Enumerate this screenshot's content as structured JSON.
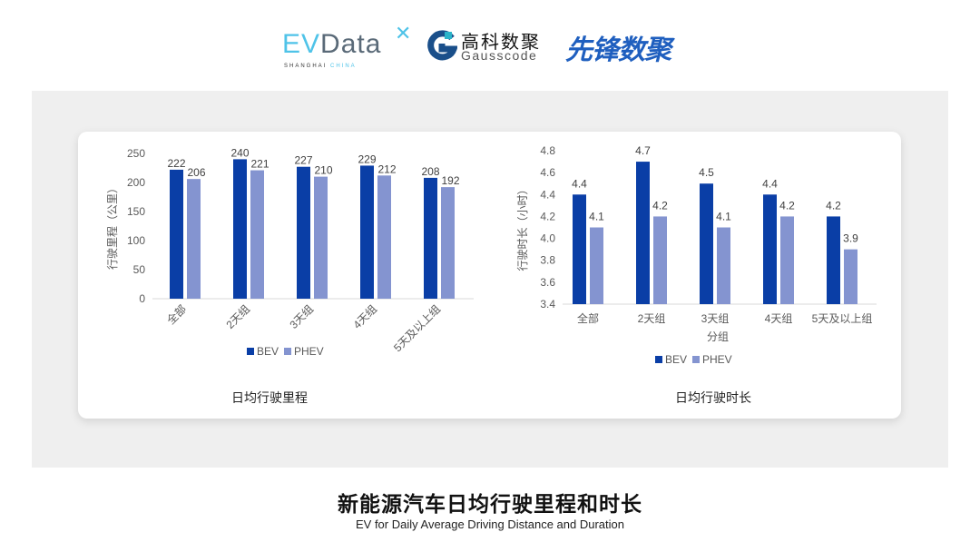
{
  "logos": {
    "evdata": {
      "ev": "EV",
      "data": "Data",
      "sub_a": "SHANGHAI",
      "sub_b": "CHINA"
    },
    "gausscode": {
      "cn": "高科数聚",
      "en": "Gausscode"
    },
    "xianfeng": "先锋数聚"
  },
  "colors": {
    "bev": "#0a3ea6",
    "phev": "#8494d0",
    "axis": "#d9d9d9",
    "text": "#595959"
  },
  "chart_data": [
    {
      "type": "bar",
      "title": "日均行驶里程",
      "ylabel": "行驶里程（公里）",
      "xlabel": "",
      "categories": [
        "全部",
        "2天组",
        "3天组",
        "4天组",
        "5天及以上组"
      ],
      "series": [
        {
          "name": "BEV",
          "values": [
            222,
            240,
            227,
            229,
            208
          ]
        },
        {
          "name": "PHEV",
          "values": [
            206,
            221,
            210,
            212,
            192
          ]
        }
      ],
      "ylim": [
        0,
        250
      ],
      "yticks": [
        0,
        50,
        100,
        150,
        200,
        250
      ],
      "grid": false,
      "legend": "bottom",
      "rotated_xlabels": true
    },
    {
      "type": "bar",
      "title": "日均行驶时长",
      "ylabel": "行驶时长（小时）",
      "xlabel": "分组",
      "categories": [
        "全部",
        "2天组",
        "3天组",
        "4天组",
        "5天及以上组"
      ],
      "series": [
        {
          "name": "BEV",
          "values": [
            4.4,
            4.7,
            4.5,
            4.4,
            4.2
          ]
        },
        {
          "name": "PHEV",
          "values": [
            4.1,
            4.2,
            4.1,
            4.2,
            3.9
          ]
        }
      ],
      "ylim": [
        3.4,
        4.8
      ],
      "yticks": [
        "3.4",
        "3.6",
        "3.8",
        "4.0",
        "4.2",
        "4.4",
        "4.6",
        "4.8"
      ],
      "grid": false,
      "legend": "bottom",
      "rotated_xlabels": false
    }
  ],
  "footer": {
    "title": "新能源汽车日均行驶里程和时长",
    "subtitle": "EV for Daily Average Driving Distance and Duration"
  }
}
